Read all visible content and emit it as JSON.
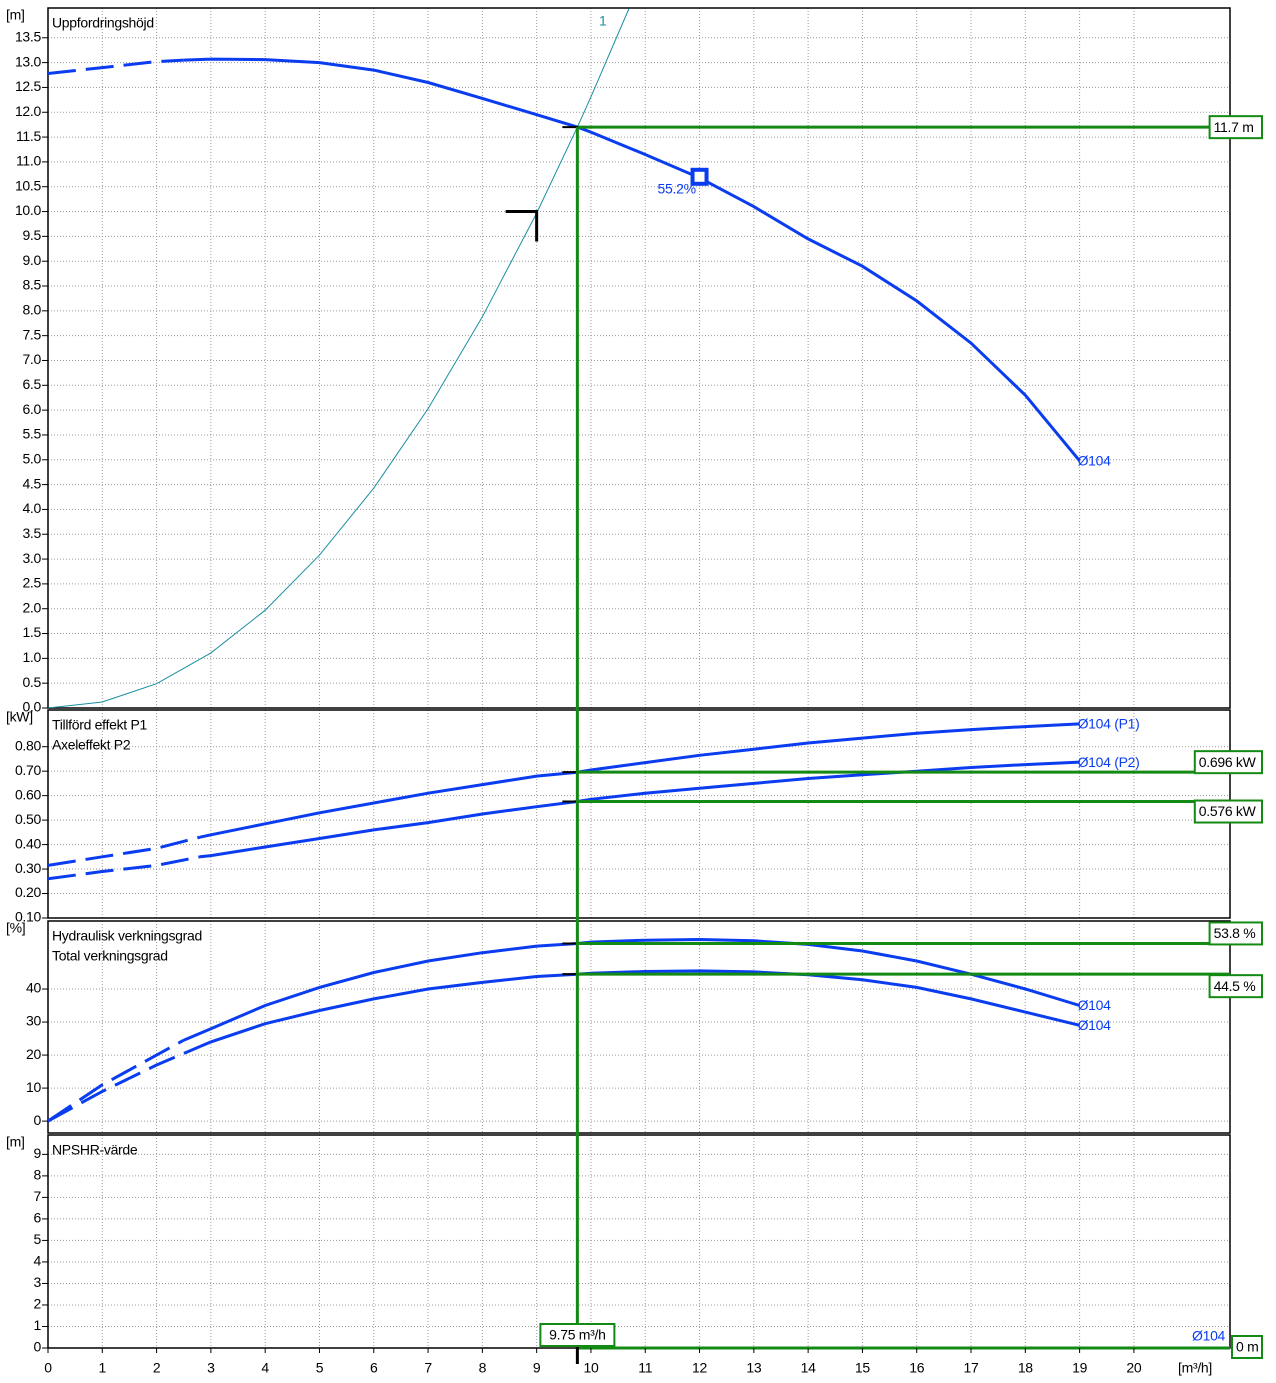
{
  "chart_data": [
    {
      "type": "line",
      "unit": "[m]",
      "titles": [
        "Uppfordringshöjd"
      ],
      "ylim": [
        0,
        14.1
      ],
      "yticks": [
        {
          "value": 0,
          "label": "0.0"
        },
        0.5,
        {
          "value": 1,
          "label": "1.0"
        },
        1.5,
        {
          "value": 2,
          "label": "2.0"
        },
        2.5,
        {
          "value": 3,
          "label": "3.0"
        },
        3.5,
        {
          "value": 4,
          "label": "4.0"
        },
        4.5,
        {
          "value": 5,
          "label": "5.0"
        },
        5.5,
        {
          "value": 6,
          "label": "6.0"
        },
        6.5,
        {
          "value": 7,
          "label": "7.0"
        },
        7.5,
        {
          "value": 8,
          "label": "8.0"
        },
        8.5,
        {
          "value": 9,
          "label": "9.0"
        },
        9.5,
        {
          "value": 10,
          "label": "10.0"
        },
        10.5,
        {
          "value": 11,
          "label": "11.0"
        },
        11.5,
        {
          "value": 12,
          "label": "12.0"
        },
        12.5,
        {
          "value": 13,
          "label": "13.0"
        },
        13.5
      ],
      "series": [
        {
          "name": "Ø104",
          "color": "#0a3cf0",
          "width": 3,
          "dash_below": 2.5,
          "x": [
            0,
            1,
            2,
            2.5,
            3,
            4,
            5,
            6,
            7,
            8,
            9,
            9.75,
            10,
            11,
            12,
            13,
            14,
            15,
            16,
            17,
            18,
            19
          ],
          "values": [
            12.78,
            12.9,
            13.02,
            13.05,
            13.07,
            13.06,
            13.0,
            12.85,
            12.6,
            12.28,
            11.95,
            11.7,
            11.6,
            11.15,
            10.68,
            10.1,
            9.45,
            8.9,
            8.2,
            7.35,
            6.3,
            4.98
          ]
        },
        {
          "name": "1",
          "color": "#1a8fa0",
          "width": 1,
          "label_at_start": true,
          "x": [
            0,
            1,
            2,
            3,
            4,
            5,
            6,
            7,
            8,
            9,
            9.75,
            10,
            10.7
          ],
          "values": [
            0,
            0.12,
            0.49,
            1.11,
            1.97,
            3.08,
            4.43,
            6.03,
            7.88,
            9.97,
            11.7,
            12.31,
            14.09
          ]
        }
      ],
      "marker": {
        "x": 12,
        "y": 10.7,
        "label": "55.2%"
      },
      "requested_point": {
        "x": 9,
        "y": 10
      },
      "readings": [
        {
          "value": 11.7,
          "label": "11.7 m"
        }
      ]
    },
    {
      "type": "line",
      "unit": "[kW]",
      "titles": [
        "Tillförd effekt P1",
        "Axeleffekt P2"
      ],
      "ylim": [
        0.1,
        0.95
      ],
      "yticks": [
        {
          "value": 0.1,
          "label": "0.10"
        },
        {
          "value": 0.2,
          "label": "0.20"
        },
        {
          "value": 0.3,
          "label": "0.30"
        },
        {
          "value": 0.4,
          "label": "0.40"
        },
        {
          "value": 0.5,
          "label": "0.50"
        },
        {
          "value": 0.6,
          "label": "0.60"
        },
        {
          "value": 0.7,
          "label": "0.70"
        },
        {
          "value": 0.8,
          "label": "0.80"
        }
      ],
      "series": [
        {
          "name": "Ø104 (P1)",
          "color": "#0a3cf0",
          "width": 3,
          "dash_below": 2.8,
          "x": [
            0,
            1,
            2,
            2.8,
            3,
            4,
            5,
            6,
            7,
            8,
            9,
            9.75,
            10,
            11,
            12,
            13,
            14,
            15,
            16,
            17,
            18,
            19
          ],
          "values": [
            0.315,
            0.35,
            0.385,
            0.43,
            0.44,
            0.485,
            0.53,
            0.57,
            0.61,
            0.645,
            0.68,
            0.696,
            0.705,
            0.735,
            0.765,
            0.79,
            0.815,
            0.835,
            0.855,
            0.87,
            0.882,
            0.893
          ]
        },
        {
          "name": "Ø104 (P2)",
          "color": "#0a3cf0",
          "width": 3,
          "dash_below": 2.8,
          "x": [
            0,
            1,
            2,
            2.8,
            3,
            4,
            5,
            6,
            7,
            8,
            9,
            9.75,
            10,
            11,
            12,
            13,
            14,
            15,
            16,
            17,
            18,
            19
          ],
          "values": [
            0.26,
            0.29,
            0.315,
            0.35,
            0.355,
            0.39,
            0.425,
            0.46,
            0.49,
            0.525,
            0.555,
            0.576,
            0.585,
            0.61,
            0.63,
            0.65,
            0.67,
            0.685,
            0.7,
            0.715,
            0.727,
            0.737
          ]
        }
      ],
      "readings": [
        {
          "value": 0.696,
          "label": "0.696 kW"
        },
        {
          "value": 0.576,
          "label": "0.576 kW"
        }
      ]
    },
    {
      "type": "line",
      "unit": "[%]",
      "titles": [
        "Hydraulisk verkningsgrad",
        "Total verkningsgrad"
      ],
      "ylim": [
        -3.6,
        60.6
      ],
      "yticks": [
        0,
        10,
        20,
        30,
        40
      ],
      "series": [
        {
          "name": "Ø104",
          "color": "#0a3cf0",
          "width": 3,
          "dash_below": 2.5,
          "x": [
            0,
            1,
            2,
            2.5,
            3,
            4,
            5,
            6,
            7,
            8,
            9,
            9.75,
            10,
            11,
            12,
            13,
            14,
            15,
            16,
            17,
            18,
            19
          ],
          "values": [
            0,
            11,
            20,
            24.5,
            28,
            35,
            40.5,
            45,
            48.5,
            51,
            53,
            53.8,
            54.2,
            54.8,
            55,
            54.6,
            53.5,
            51.5,
            48.5,
            44.5,
            40,
            35
          ]
        },
        {
          "name": "Ø104",
          "color": "#0a3cf0",
          "width": 3,
          "dash_below": 2.8,
          "x": [
            0,
            1,
            2,
            2.8,
            3,
            4,
            5,
            6,
            7,
            8,
            9,
            9.75,
            10,
            11,
            12,
            13,
            14,
            15,
            16,
            17,
            18,
            19
          ],
          "values": [
            0,
            9,
            17,
            22.6,
            24,
            29.5,
            33.5,
            37,
            40,
            42,
            43.8,
            44.5,
            44.8,
            45.3,
            45.5,
            45.2,
            44.3,
            42.8,
            40.5,
            37,
            33,
            29
          ]
        }
      ],
      "readings": [
        {
          "value": 53.8,
          "label": "53.8 %"
        },
        {
          "value": 44.5,
          "label": "44.5 %"
        }
      ]
    },
    {
      "type": "line",
      "unit": "[m]",
      "titles": [
        "NPSHR-värde"
      ],
      "ylim": [
        0,
        9.9
      ],
      "yticks": [
        0,
        1,
        2,
        3,
        4,
        5,
        6,
        7,
        8,
        9
      ],
      "series_label": "Ø104",
      "readings": [
        {
          "value": 0,
          "label": "0 m"
        }
      ],
      "xlim": [
        0,
        21.77
      ],
      "xticks": [
        0,
        1,
        2,
        3,
        4,
        5,
        6,
        7,
        8,
        9,
        10,
        11,
        12,
        13,
        14,
        15,
        16,
        17,
        18,
        19,
        20
      ],
      "xlabel": "[m³/h]",
      "x_marker": {
        "value": 9.75,
        "label": "9.75 m³/h"
      }
    }
  ]
}
